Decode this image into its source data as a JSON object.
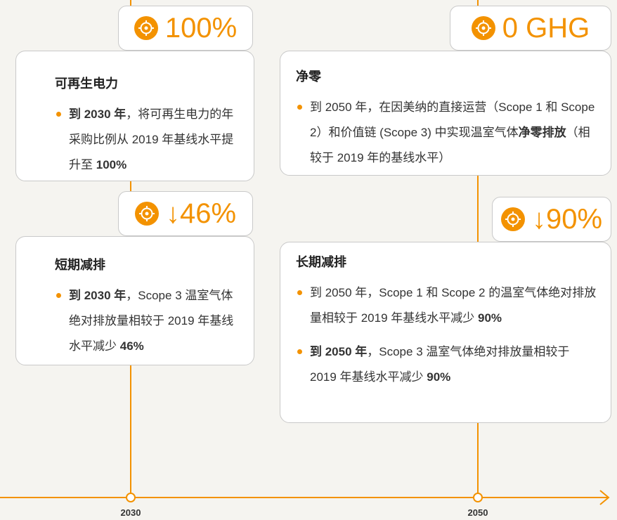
{
  "timeline": {
    "labels": [
      "2030",
      "2050"
    ]
  },
  "cards": [
    {
      "badge": "100%",
      "title": "可再生电力",
      "bullets": [
        [
          {
            "text": "到 2030 年",
            "bold": true
          },
          {
            "text": "，将可再生电力的年采购比例从 2019 年基线水平提升至 "
          },
          {
            "text": "100%",
            "bold": true
          }
        ]
      ]
    },
    {
      "badge": "↓46%",
      "title": "短期减排",
      "bullets": [
        [
          {
            "text": "到 2030 年",
            "bold": true
          },
          {
            "text": "，Scope 3 温室气体绝对排放量相较于 2019 年基线水平减少 "
          },
          {
            "text": "46%",
            "bold": true
          }
        ]
      ]
    },
    {
      "badge": "0 GHG",
      "title": "净零",
      "bullets": [
        [
          {
            "text": "到 2050 年，在因美纳的直接运营（Scope 1 和 Scope 2）和价值链 (Scope 3) 中实现温室气体"
          },
          {
            "text": "净零排放",
            "bold": true
          },
          {
            "text": "（相较于 2019 年的基线水平）"
          }
        ]
      ]
    },
    {
      "badge": "↓90%",
      "title": "长期减排",
      "bullets": [
        [
          {
            "text": "到 2050 年，Scope 1 和 Scope 2 的温室气体绝对排放量相较于 2019 年基线水平减少 "
          },
          {
            "text": "90%",
            "bold": true
          }
        ],
        [
          {
            "text": "到 2050 年",
            "bold": true
          },
          {
            "text": "，Scope 3 温室气体绝对排放量相较于 2019 年基线水平减少 "
          },
          {
            "text": "90%",
            "bold": true
          }
        ]
      ]
    }
  ]
}
